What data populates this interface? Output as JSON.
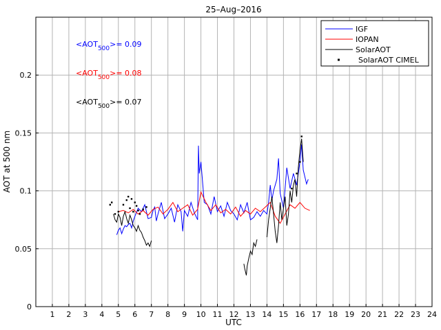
{
  "chart_data": {
    "type": "line",
    "title": "25–Aug–2016",
    "xlabel": "UTC",
    "ylabel": "AOT at 500 nm",
    "xlim": [
      0,
      24
    ],
    "ylim": [
      0,
      0.25
    ],
    "grid": true,
    "x_ticks": [
      1,
      2,
      3,
      4,
      5,
      6,
      7,
      8,
      9,
      10,
      11,
      12,
      13,
      14,
      15,
      16,
      17,
      18,
      19,
      20,
      21,
      22,
      23,
      24
    ],
    "y_ticks": [
      0,
      0.05,
      0.1,
      0.15,
      0.2
    ],
    "y_tick_labels": [
      "0",
      "0.05",
      "0.1",
      "0.15",
      "0.2"
    ],
    "legend_position": "top-right",
    "annotations": [
      {
        "prefix": "<AOT",
        "sub": "500",
        "suffix": ">= 0.09",
        "color": "#0000ff"
      },
      {
        "prefix": "<AOT",
        "sub": "500",
        "suffix": ">= 0.08",
        "color": "#ff0000"
      },
      {
        "prefix": "<AOT",
        "sub": "500",
        "suffix": ">= 0.07",
        "color": "#000000"
      }
    ],
    "series": [
      {
        "name": "IGF",
        "color": "#0000ff",
        "style": "line",
        "x": [
          4.9,
          5.0,
          5.1,
          5.2,
          5.3,
          5.4,
          5.5,
          5.6,
          5.7,
          5.8,
          5.9,
          6.0,
          6.2,
          6.4,
          6.6,
          6.8,
          7.0,
          7.1,
          7.2,
          7.3,
          7.4,
          7.6,
          7.8,
          8.0,
          8.2,
          8.4,
          8.6,
          8.8,
          8.9,
          9.0,
          9.2,
          9.4,
          9.6,
          9.8,
          9.85,
          9.9,
          10.0,
          10.2,
          10.4,
          10.6,
          10.8,
          11.0,
          11.2,
          11.4,
          11.6,
          11.8,
          12.0,
          12.2,
          12.4,
          12.6,
          12.8,
          13.0,
          13.2,
          13.4,
          13.6,
          13.8,
          14.0,
          14.1,
          14.2,
          14.3,
          14.4,
          14.6,
          14.7,
          14.8,
          15.0,
          15.2,
          15.4,
          15.6,
          15.8,
          16.0,
          16.1,
          16.2,
          16.4,
          16.5
        ],
        "y": [
          0.062,
          0.066,
          0.068,
          0.063,
          0.067,
          0.07,
          0.069,
          0.071,
          0.072,
          0.068,
          0.074,
          0.078,
          0.085,
          0.082,
          0.088,
          0.076,
          0.077,
          0.083,
          0.086,
          0.074,
          0.08,
          0.09,
          0.076,
          0.08,
          0.085,
          0.073,
          0.088,
          0.082,
          0.065,
          0.083,
          0.078,
          0.09,
          0.081,
          0.075,
          0.139,
          0.115,
          0.125,
          0.09,
          0.088,
          0.08,
          0.095,
          0.082,
          0.087,
          0.078,
          0.09,
          0.083,
          0.08,
          0.075,
          0.088,
          0.081,
          0.09,
          0.075,
          0.077,
          0.082,
          0.078,
          0.083,
          0.08,
          0.09,
          0.105,
          0.092,
          0.1,
          0.11,
          0.128,
          0.098,
          0.085,
          0.12,
          0.102,
          0.115,
          0.105,
          0.125,
          0.14,
          0.118,
          0.106,
          0.11
        ]
      },
      {
        "name": "IOPAN",
        "color": "#ff0000",
        "style": "line",
        "x": [
          5.0,
          5.3,
          5.6,
          5.9,
          6.2,
          6.5,
          6.8,
          7.1,
          7.4,
          7.7,
          8.0,
          8.3,
          8.6,
          8.9,
          9.2,
          9.5,
          9.8,
          10.0,
          10.3,
          10.6,
          10.9,
          11.2,
          11.5,
          11.8,
          12.1,
          12.4,
          12.7,
          13.0,
          13.3,
          13.6,
          13.9,
          14.2,
          14.5,
          14.8,
          15.1,
          15.4,
          15.7,
          16.0,
          16.3,
          16.6
        ],
        "y": [
          0.082,
          0.083,
          0.081,
          0.084,
          0.08,
          0.083,
          0.079,
          0.084,
          0.086,
          0.08,
          0.084,
          0.09,
          0.082,
          0.085,
          0.088,
          0.079,
          0.084,
          0.099,
          0.09,
          0.083,
          0.088,
          0.081,
          0.084,
          0.08,
          0.086,
          0.078,
          0.083,
          0.08,
          0.085,
          0.082,
          0.086,
          0.09,
          0.078,
          0.072,
          0.08,
          0.088,
          0.085,
          0.09,
          0.085,
          0.083
        ]
      },
      {
        "name": "SolarAOT",
        "color": "#000000",
        "style": "line",
        "segments": [
          {
            "x": [
              4.7,
              4.8,
              4.9,
              5.0,
              5.1,
              5.2,
              5.3,
              5.4,
              5.5,
              5.6,
              5.7,
              5.8,
              5.9,
              6.0,
              6.1,
              6.2,
              6.3,
              6.4,
              6.5,
              6.6,
              6.7,
              6.8,
              6.9,
              7.0
            ],
            "y": [
              0.08,
              0.075,
              0.073,
              0.08,
              0.077,
              0.07,
              0.078,
              0.082,
              0.076,
              0.072,
              0.079,
              0.075,
              0.07,
              0.068,
              0.065,
              0.07,
              0.066,
              0.064,
              0.06,
              0.057,
              0.053,
              0.055,
              0.052,
              0.057
            ]
          },
          {
            "x": [
              12.6,
              12.65,
              12.7,
              12.75,
              12.8,
              12.9,
              13.0,
              13.1,
              13.2,
              13.3,
              13.4
            ],
            "y": [
              0.037,
              0.033,
              0.03,
              0.027,
              0.035,
              0.042,
              0.048,
              0.045,
              0.055,
              0.052,
              0.058
            ]
          },
          {
            "x": [
              14.0,
              14.1,
              14.2,
              14.3,
              14.4,
              14.5,
              14.6,
              14.7,
              14.8,
              14.9,
              15.0,
              15.1,
              15.2,
              15.3,
              15.4,
              15.5,
              15.6,
              15.7,
              15.8,
              15.9,
              16.0,
              16.1,
              16.2
            ],
            "y": [
              0.06,
              0.075,
              0.085,
              0.095,
              0.08,
              0.065,
              0.055,
              0.07,
              0.09,
              0.075,
              0.085,
              0.095,
              0.07,
              0.08,
              0.1,
              0.09,
              0.105,
              0.11,
              0.095,
              0.12,
              0.135,
              0.145,
              0.125
            ]
          }
        ]
      },
      {
        "name": "SolarAOT CIMEL",
        "color": "#000000",
        "style": "points",
        "x": [
          4.5,
          4.6,
          4.8,
          5.0,
          5.3,
          5.5,
          5.6,
          5.7,
          5.8,
          5.9,
          6.0,
          6.1,
          6.2,
          6.3,
          6.5,
          6.7,
          15.5,
          15.8,
          16.0,
          16.1
        ],
        "y": [
          0.088,
          0.09,
          0.08,
          0.082,
          0.088,
          0.092,
          0.095,
          0.085,
          0.093,
          0.082,
          0.09,
          0.087,
          0.083,
          0.08,
          0.084,
          0.086,
          0.102,
          0.115,
          0.125,
          0.147
        ]
      }
    ]
  }
}
